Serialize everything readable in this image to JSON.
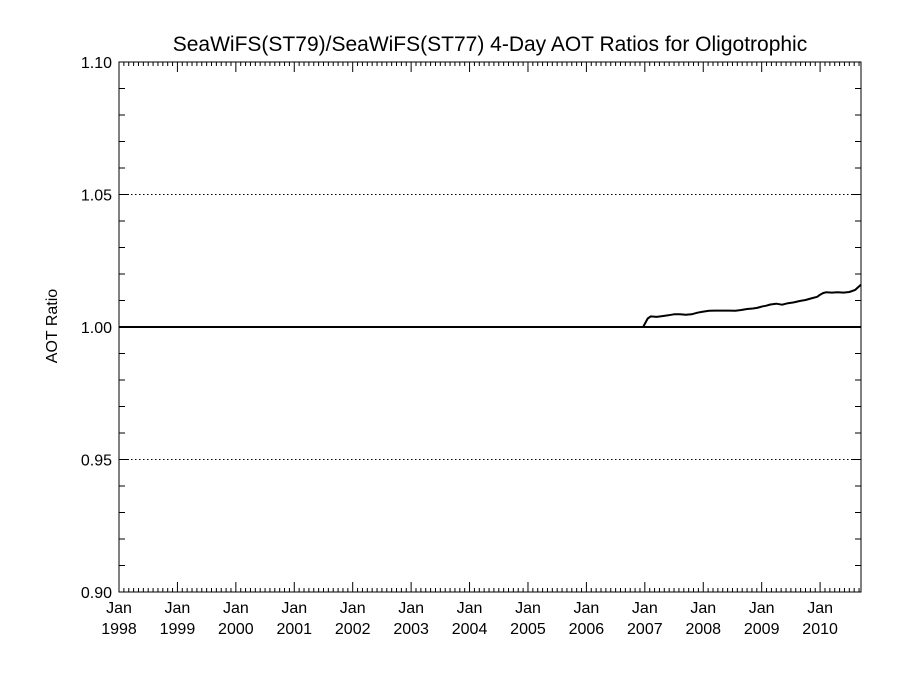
{
  "chart_data": {
    "type": "line",
    "title": "SeaWiFS(ST79)/SeaWiFS(ST77) 4-Day AOT Ratios for Oligotrophic",
    "xlabel": "",
    "ylabel": "AOT Ratio",
    "xlim": [
      1998.0,
      2010.7
    ],
    "ylim": [
      0.9,
      1.1
    ],
    "y_ticks": [
      {
        "value": 0.9,
        "label": "0.90"
      },
      {
        "value": 0.95,
        "label": "0.95"
      },
      {
        "value": 1.0,
        "label": "1.00"
      },
      {
        "value": 1.05,
        "label": "1.05"
      },
      {
        "value": 1.1,
        "label": "1.10"
      }
    ],
    "x_ticks": [
      {
        "value": 1998,
        "month": "Jan",
        "year": "1998"
      },
      {
        "value": 1999,
        "month": "Jan",
        "year": "1999"
      },
      {
        "value": 2000,
        "month": "Jan",
        "year": "2000"
      },
      {
        "value": 2001,
        "month": "Jan",
        "year": "2001"
      },
      {
        "value": 2002,
        "month": "Jan",
        "year": "2002"
      },
      {
        "value": 2003,
        "month": "Jan",
        "year": "2003"
      },
      {
        "value": 2004,
        "month": "Jan",
        "year": "2004"
      },
      {
        "value": 2005,
        "month": "Jan",
        "year": "2005"
      },
      {
        "value": 2006,
        "month": "Jan",
        "year": "2006"
      },
      {
        "value": 2007,
        "month": "Jan",
        "year": "2007"
      },
      {
        "value": 2008,
        "month": "Jan",
        "year": "2008"
      },
      {
        "value": 2009,
        "month": "Jan",
        "year": "2009"
      },
      {
        "value": 2010,
        "month": "Jan",
        "year": "2010"
      }
    ],
    "dotted_gridlines_y": [
      0.95,
      1.05,
      1.1
    ],
    "reference_line_y": 1.0,
    "series": [
      {
        "color": "#000000",
        "x": [
          1998.0,
          2006.97,
          2007.05,
          2007.1,
          2007.2,
          2007.3,
          2007.4,
          2007.5,
          2007.6,
          2007.7,
          2007.8,
          2007.9,
          2008.0,
          2008.1,
          2008.2,
          2008.3,
          2008.35,
          2008.45,
          2008.55,
          2008.65,
          2008.75,
          2008.85,
          2008.92,
          2008.97,
          2009.02,
          2009.07,
          2009.15,
          2009.25,
          2009.35,
          2009.45,
          2009.55,
          2009.65,
          2009.75,
          2009.85,
          2009.95,
          2010.0,
          2010.05,
          2010.1,
          2010.2,
          2010.3,
          2010.4,
          2010.5,
          2010.6,
          2010.7
        ],
        "y": [
          1.0,
          1.0,
          1.0032,
          1.004,
          1.0038,
          1.0041,
          1.0044,
          1.0048,
          1.0048,
          1.0046,
          1.0048,
          1.0054,
          1.0058,
          1.0061,
          1.0062,
          1.0062,
          1.0062,
          1.0062,
          1.0061,
          1.0064,
          1.0068,
          1.007,
          1.0072,
          1.0075,
          1.0078,
          1.008,
          1.0085,
          1.0088,
          1.0084,
          1.009,
          1.0093,
          1.0098,
          1.0102,
          1.0108,
          1.0114,
          1.0122,
          1.0128,
          1.0131,
          1.013,
          1.0131,
          1.013,
          1.0132,
          1.014,
          1.016
        ]
      }
    ]
  }
}
